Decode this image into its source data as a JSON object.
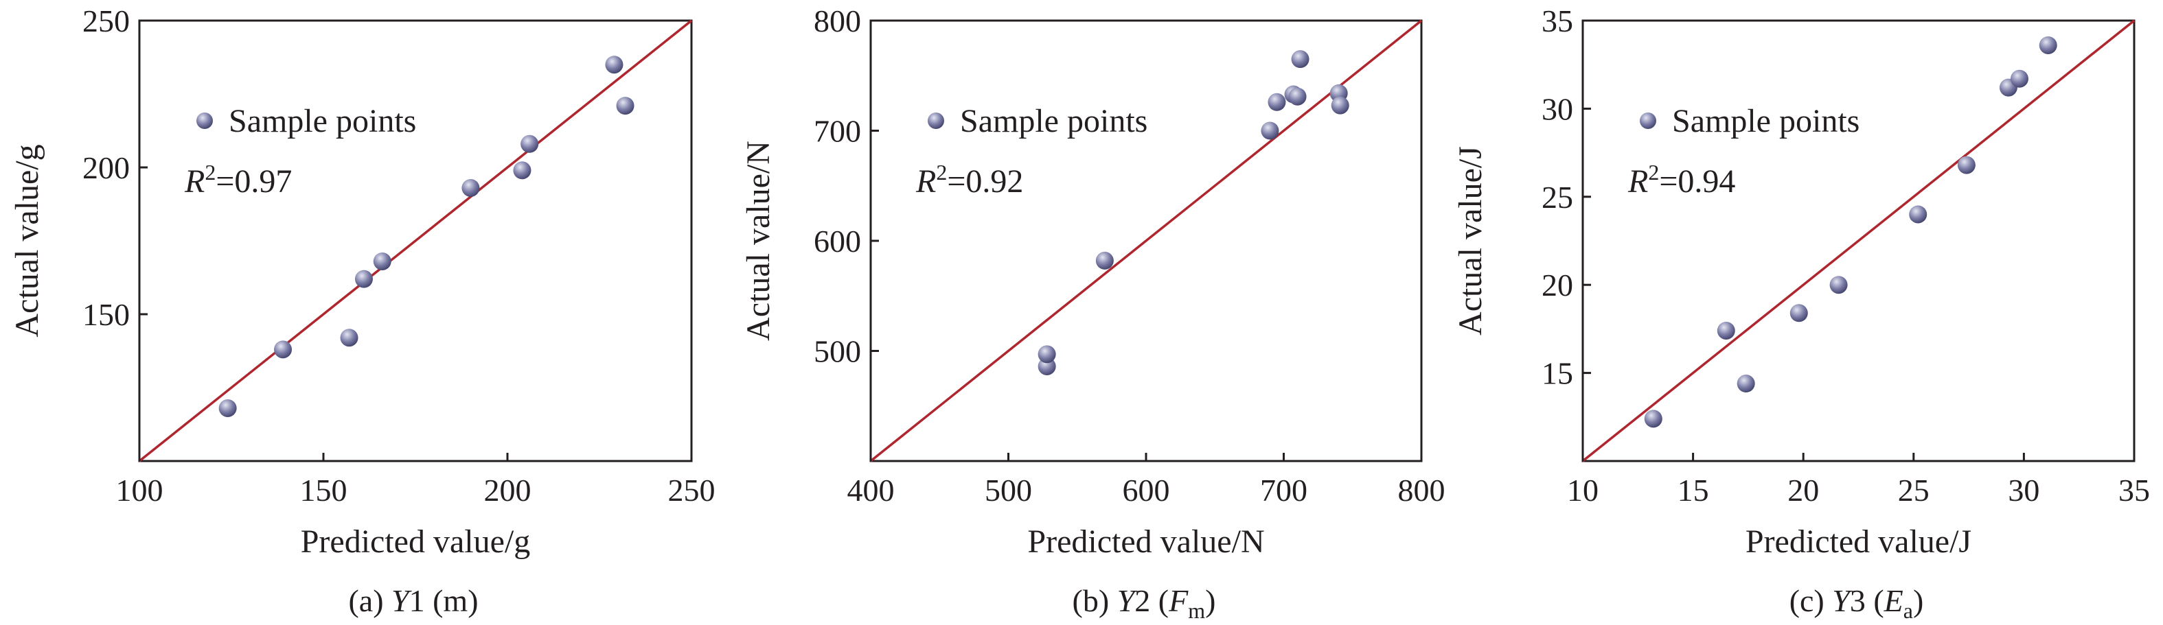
{
  "chart_data": [
    {
      "type": "scatter",
      "xlabel": "Predicted value/g",
      "ylabel": "Actual value/g",
      "xlim": [
        100,
        250
      ],
      "ylim": [
        100,
        250
      ],
      "xticks": [
        "100",
        "150",
        "200",
        "250"
      ],
      "yticks": [
        "150",
        "200",
        "250"
      ],
      "legend": "Sample points",
      "legend_position": "top-left",
      "annotation": {
        "sym": "R",
        "sup": "2",
        "rest": "=0.97"
      },
      "caption": {
        "pre": "(a) ",
        "italic": "Y",
        "mid": "1 (m)",
        "sub": "",
        "post": ""
      },
      "series": [
        {
          "name": "Sample points",
          "points": [
            [
              124,
              118
            ],
            [
              139,
              138
            ],
            [
              157,
              142
            ],
            [
              161,
              162
            ],
            [
              166,
              168
            ],
            [
              190,
              193
            ],
            [
              204,
              199
            ],
            [
              206,
              208
            ],
            [
              229,
              235
            ],
            [
              232,
              221
            ]
          ]
        }
      ],
      "reference_line": "y = x"
    },
    {
      "type": "scatter",
      "xlabel": "Predicted value/N",
      "ylabel": "Actual value/N",
      "xlim": [
        400,
        800
      ],
      "ylim": [
        400,
        800
      ],
      "xticks": [
        "400",
        "500",
        "600",
        "700",
        "800"
      ],
      "yticks": [
        "500",
        "600",
        "700",
        "800"
      ],
      "legend": "Sample points",
      "legend_position": "top-left",
      "annotation": {
        "sym": "R",
        "sup": "2",
        "rest": "=0.92"
      },
      "caption": {
        "pre": "(b) ",
        "italic": "Y",
        "mid": "2 (",
        "italic2": "F",
        "sub": "m",
        "post": ")"
      },
      "series": [
        {
          "name": "Sample points",
          "points": [
            [
              528,
              486
            ],
            [
              528,
              497
            ],
            [
              570,
              582
            ],
            [
              690,
              700
            ],
            [
              695,
              726
            ],
            [
              707,
              733
            ],
            [
              710,
              731
            ],
            [
              712,
              765
            ],
            [
              740,
              734
            ],
            [
              741,
              723
            ]
          ]
        }
      ],
      "reference_line": "y = x"
    },
    {
      "type": "scatter",
      "xlabel": "Predicted value/J",
      "ylabel": "Actual value/J",
      "xlim": [
        10,
        35
      ],
      "ylim": [
        10,
        35
      ],
      "xticks": [
        "10",
        "15",
        "20",
        "25",
        "30",
        "35"
      ],
      "yticks": [
        "15",
        "20",
        "25",
        "30",
        "35"
      ],
      "legend": "Sample points",
      "legend_position": "top-left",
      "annotation": {
        "sym": "R",
        "sup": "2",
        "rest": "=0.94"
      },
      "caption": {
        "pre": "(c) ",
        "italic": "Y",
        "mid": "3 (",
        "italic2": "E",
        "sub": "a",
        "post": ")"
      },
      "series": [
        {
          "name": "Sample points",
          "points": [
            [
              13.2,
              12.4
            ],
            [
              16.5,
              17.4
            ],
            [
              17.4,
              14.4
            ],
            [
              19.8,
              18.4
            ],
            [
              21.6,
              20.0
            ],
            [
              25.2,
              24.0
            ],
            [
              27.4,
              26.8
            ],
            [
              29.3,
              31.2
            ],
            [
              29.8,
              31.7
            ],
            [
              31.1,
              33.6
            ]
          ]
        }
      ],
      "reference_line": "y = x"
    }
  ],
  "colors": {
    "marker_fill": "#7c7ea8",
    "marker_highlight": "#e4e5f2",
    "marker_shadow": "#3f4068",
    "fit_line": "#b0262f",
    "axis": "#231f20"
  }
}
